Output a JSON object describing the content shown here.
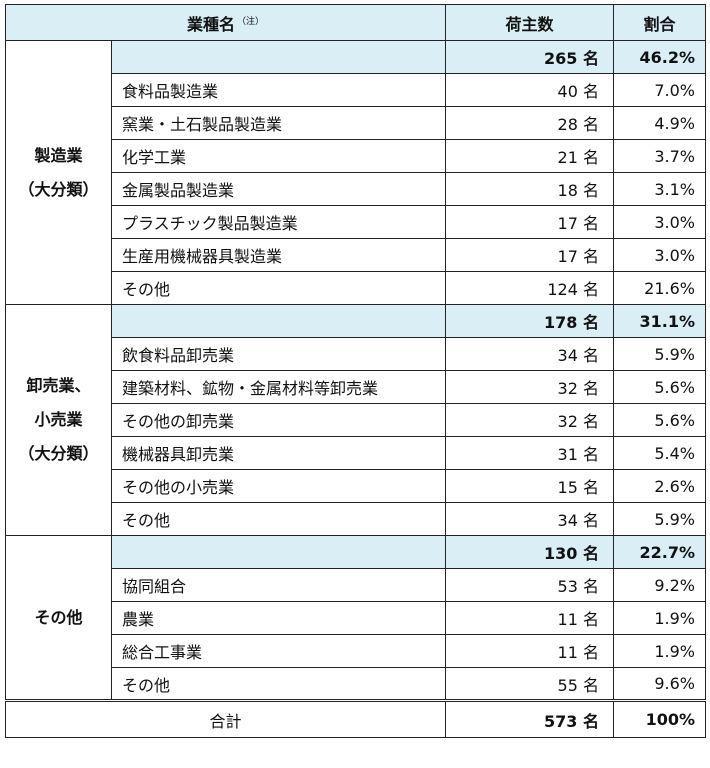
{
  "header": {
    "industry": "業種名",
    "note": "（注）",
    "shippers": "荷主数",
    "share": "割合"
  },
  "groups": [
    {
      "category": [
        "製造業",
        "（大分類）"
      ],
      "subtotal": {
        "count": "265 名",
        "share": "46.2%"
      },
      "rows": [
        {
          "name": "食料品製造業",
          "count": "40 名",
          "share": "7.0%"
        },
        {
          "name": "窯業・土石製品製造業",
          "count": "28 名",
          "share": "4.9%"
        },
        {
          "name": "化学工業",
          "count": "21 名",
          "share": "3.7%"
        },
        {
          "name": "金属製品製造業",
          "count": "18 名",
          "share": "3.1%"
        },
        {
          "name": "プラスチック製品製造業",
          "count": "17 名",
          "share": "3.0%"
        },
        {
          "name": "生産用機械器具製造業",
          "count": "17 名",
          "share": "3.0%"
        },
        {
          "name": "その他",
          "count": "124 名",
          "share": "21.6%"
        }
      ]
    },
    {
      "category": [
        "卸売業、",
        "小売業",
        "（大分類）"
      ],
      "subtotal": {
        "count": "178 名",
        "share": "31.1%"
      },
      "rows": [
        {
          "name": "飲食料品卸売業",
          "count": "34 名",
          "share": "5.9%"
        },
        {
          "name": "建築材料、鉱物・金属材料等卸売業",
          "count": "32 名",
          "share": "5.6%"
        },
        {
          "name": "その他の卸売業",
          "count": "32 名",
          "share": "5.6%"
        },
        {
          "name": "機械器具卸売業",
          "count": "31 名",
          "share": "5.4%"
        },
        {
          "name": "その他の小売業",
          "count": "15 名",
          "share": "2.6%"
        },
        {
          "name": "その他",
          "count": "34 名",
          "share": "5.9%"
        }
      ]
    },
    {
      "category": [
        "その他"
      ],
      "subtotal": {
        "count": "130 名",
        "share": "22.7%"
      },
      "rows": [
        {
          "name": "協同組合",
          "count": "53 名",
          "share": "9.2%"
        },
        {
          "name": "農業",
          "count": "11 名",
          "share": "1.9%"
        },
        {
          "name": "総合工事業",
          "count": "11 名",
          "share": "1.9%"
        },
        {
          "name": "その他",
          "count": "55 名",
          "share": "9.6%"
        }
      ]
    }
  ],
  "total": {
    "label": "合計",
    "count": "573 名",
    "share": "100%"
  }
}
